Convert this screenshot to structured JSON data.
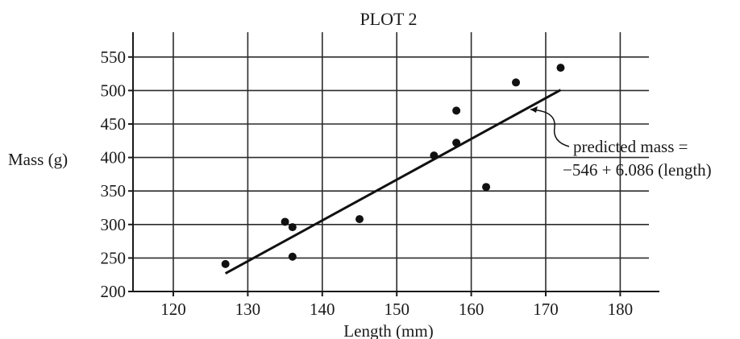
{
  "chart_data": {
    "type": "scatter",
    "title": "PLOT 2",
    "xlabel": "Length (mm)",
    "ylabel": "Mass (g)",
    "xlim": [
      115,
      185
    ],
    "ylim": [
      200,
      560
    ],
    "xticks": [
      120,
      130,
      140,
      150,
      160,
      170,
      180
    ],
    "yticks": [
      200,
      250,
      300,
      350,
      400,
      450,
      500,
      550
    ],
    "grid": true,
    "points": [
      {
        "x": 127,
        "y": 241
      },
      {
        "x": 135,
        "y": 304
      },
      {
        "x": 136,
        "y": 296
      },
      {
        "x": 136,
        "y": 252
      },
      {
        "x": 145,
        "y": 308
      },
      {
        "x": 155,
        "y": 403
      },
      {
        "x": 158,
        "y": 470
      },
      {
        "x": 158,
        "y": 422
      },
      {
        "x": 162,
        "y": 356
      },
      {
        "x": 166,
        "y": 512
      },
      {
        "x": 172,
        "y": 534
      }
    ],
    "fit_line": {
      "intercept": -546,
      "slope": 6.086,
      "x_start": 127,
      "x_end": 172
    },
    "annotation": {
      "line1": "predicted mass =",
      "line2": "−546 + 6.086 (length)"
    }
  }
}
